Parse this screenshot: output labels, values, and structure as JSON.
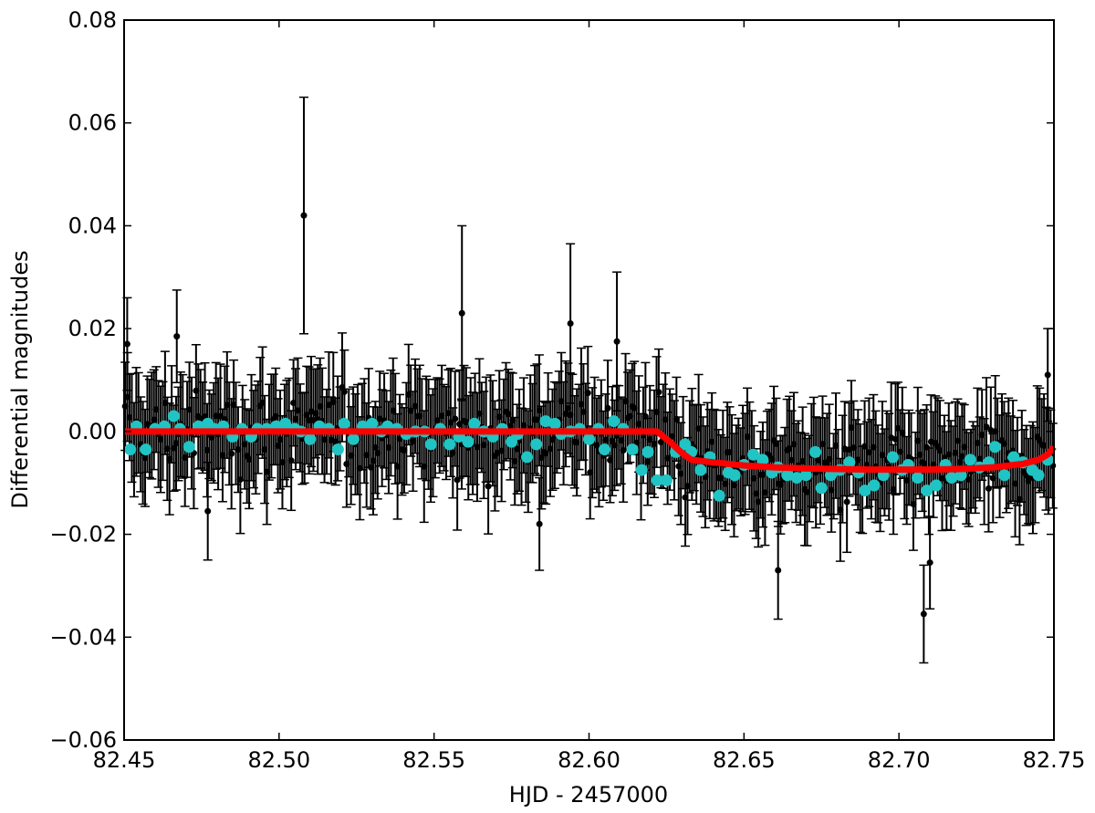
{
  "chart_data": {
    "type": "scatter",
    "title": "",
    "xlabel": "HJD - 2457000",
    "ylabel": "Differential magnitudes",
    "xlim": [
      82.45,
      82.75
    ],
    "ylim": [
      -0.06,
      0.08
    ],
    "xticks": [
      82.45,
      82.5,
      82.55,
      82.6,
      82.65,
      82.7,
      82.75
    ],
    "xtick_labels": [
      "82.45",
      "82.50",
      "82.55",
      "82.60",
      "82.65",
      "82.70",
      "82.75"
    ],
    "yticks": [
      -0.06,
      -0.04,
      -0.02,
      0.0,
      0.02,
      0.04,
      0.06,
      0.08
    ],
    "ytick_labels": [
      "−0.06",
      "−0.04",
      "−0.02",
      "0.00",
      "0.02",
      "0.04",
      "0.06",
      "0.08"
    ],
    "grid": false,
    "legend": "none",
    "colors": {
      "points": "#000000",
      "binned": "#20c4c4",
      "model": "#ff0000"
    },
    "notable_points": [
      {
        "x": 82.508,
        "y": 0.042,
        "err": 0.023
      },
      {
        "x": 82.559,
        "y": 0.023,
        "err": 0.017
      },
      {
        "x": 82.594,
        "y": 0.021,
        "err": 0.0155
      },
      {
        "x": 82.609,
        "y": 0.0175,
        "err": 0.0135
      },
      {
        "x": 82.661,
        "y": -0.027,
        "err": 0.0095
      },
      {
        "x": 82.708,
        "y": -0.0355,
        "err": 0.0095
      },
      {
        "x": 82.71,
        "y": -0.0255,
        "err": 0.009
      },
      {
        "x": 82.584,
        "y": -0.018,
        "err": 0.009
      },
      {
        "x": 82.477,
        "y": -0.0155,
        "err": 0.0095
      },
      {
        "x": 82.451,
        "y": 0.017,
        "err": 0.009
      },
      {
        "x": 82.467,
        "y": 0.0185,
        "err": 0.009
      },
      {
        "x": 82.748,
        "y": 0.011,
        "err": 0.009
      }
    ],
    "binned_points": {
      "x": [
        82.452,
        82.454,
        82.457,
        82.46,
        82.463,
        82.466,
        82.468,
        82.471,
        82.474,
        82.477,
        82.479,
        82.482,
        82.485,
        82.488,
        82.491,
        82.493,
        82.496,
        82.499,
        82.502,
        82.505,
        82.507,
        82.51,
        82.513,
        82.516,
        82.519,
        82.521,
        82.524,
        82.527,
        82.53,
        82.533,
        82.535,
        82.538,
        82.541,
        82.544,
        82.547,
        82.549,
        82.552,
        82.555,
        82.558,
        82.561,
        82.563,
        82.566,
        82.569,
        82.572,
        82.575,
        82.577,
        82.58,
        82.583,
        82.586,
        82.589,
        82.591,
        82.594,
        82.597,
        82.6,
        82.603,
        82.605,
        82.608,
        82.611,
        82.614,
        82.617,
        82.619,
        82.622,
        82.625,
        82.628,
        82.631,
        82.633,
        82.636,
        82.639,
        82.642,
        82.645,
        82.647,
        82.65,
        82.653,
        82.656,
        82.659,
        82.661,
        82.664,
        82.667,
        82.67,
        82.673,
        82.675,
        82.678,
        82.681,
        82.684,
        82.687,
        82.689,
        82.692,
        82.695,
        82.698,
        82.701,
        82.703,
        82.706,
        82.709,
        82.712,
        82.715,
        82.717,
        82.72,
        82.723,
        82.726,
        82.729,
        82.731,
        82.734,
        82.737,
        82.74,
        82.743,
        82.745,
        82.748
      ],
      "y": [
        -0.0035,
        0.001,
        -0.0035,
        0.0005,
        0.001,
        0.003,
        0.0005,
        -0.003,
        0.001,
        0.0015,
        0.0005,
        0.001,
        -0.001,
        0.0005,
        -0.001,
        0.0005,
        0.0005,
        0.001,
        0.0015,
        0.0005,
        0.0,
        -0.0015,
        0.001,
        0.0005,
        -0.0035,
        0.0015,
        -0.0015,
        0.001,
        0.0015,
        0.0,
        0.001,
        0.0005,
        -0.0005,
        0.0,
        0.0,
        -0.0025,
        0.0005,
        -0.0025,
        -0.001,
        -0.002,
        0.0015,
        0.0,
        -0.001,
        0.0005,
        -0.002,
        -0.0005,
        -0.005,
        -0.0025,
        0.002,
        0.0015,
        -0.0005,
        0.0,
        0.0005,
        -0.0015,
        0.0005,
        -0.0035,
        0.002,
        0.0005,
        -0.0035,
        -0.0075,
        -0.004,
        -0.0095,
        -0.0095,
        -0.004,
        -0.0025,
        -0.004,
        -0.0075,
        -0.005,
        -0.0125,
        -0.008,
        -0.0085,
        -0.0065,
        -0.0045,
        -0.0055,
        -0.008,
        -0.007,
        -0.0085,
        -0.009,
        -0.0085,
        -0.004,
        -0.011,
        -0.0085,
        -0.0075,
        -0.006,
        -0.008,
        -0.0115,
        -0.0105,
        -0.0085,
        -0.005,
        -0.0075,
        -0.0065,
        -0.009,
        -0.0115,
        -0.0105,
        -0.0065,
        -0.009,
        -0.0085,
        -0.0055,
        -0.007,
        -0.006,
        -0.003,
        -0.0085,
        -0.005,
        -0.006,
        -0.0075,
        -0.0085,
        -0.0055
      ]
    },
    "model_curve": {
      "x": [
        82.45,
        82.5,
        82.55,
        82.6,
        82.622,
        82.626,
        82.63,
        82.633,
        82.64,
        82.65,
        82.66,
        82.67,
        82.68,
        82.69,
        82.7,
        82.71,
        82.72,
        82.73,
        82.74,
        82.745,
        82.748,
        82.75
      ],
      "y": [
        0.0,
        0.0,
        0.0,
        0.0,
        0.0,
        -0.002,
        -0.0042,
        -0.0055,
        -0.006,
        -0.0066,
        -0.007,
        -0.0072,
        -0.0073,
        -0.0074,
        -0.0074,
        -0.0074,
        -0.0073,
        -0.007,
        -0.0063,
        -0.0055,
        -0.0045,
        -0.003
      ]
    },
    "raw_series": {
      "description_n": 420,
      "x_range": [
        82.45,
        82.75
      ],
      "typical_error": 0.0095
    }
  }
}
